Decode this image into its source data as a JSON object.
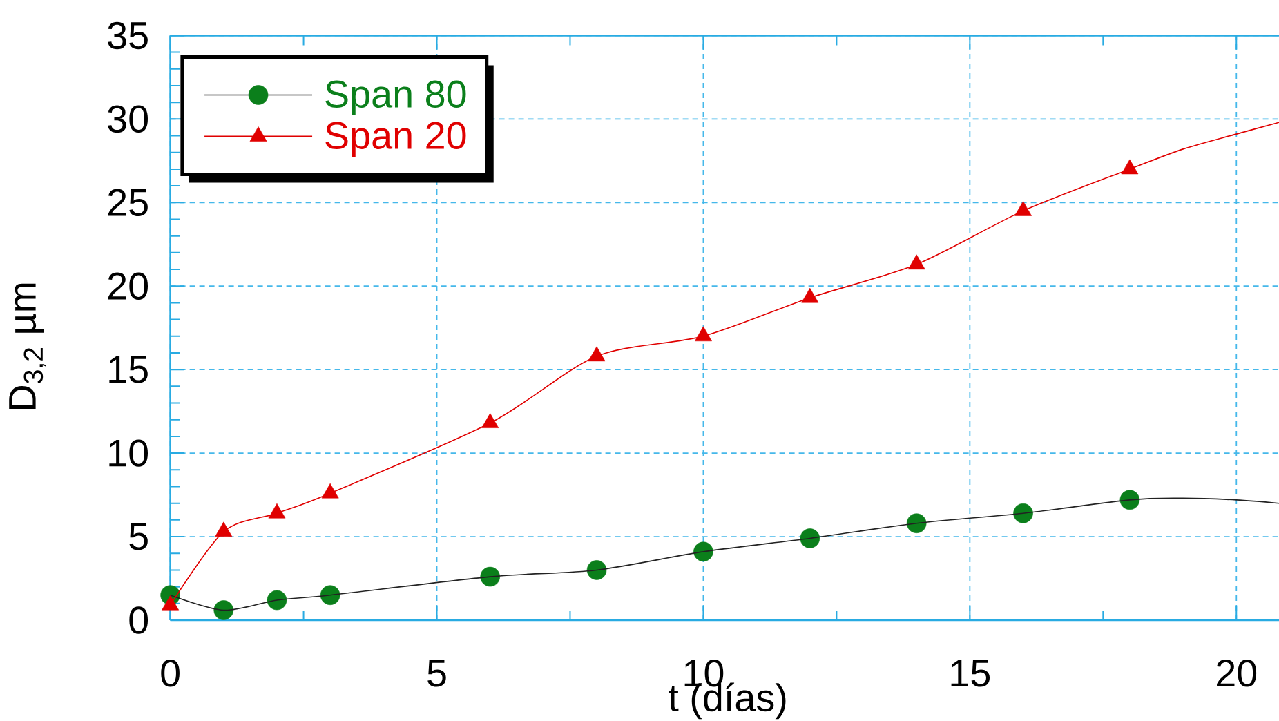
{
  "chart_data": {
    "type": "line",
    "xlabel": "t (días)",
    "ylabel": "D$_{3,2}$ µm",
    "xlim": [
      0,
      20.8
    ],
    "ylim": [
      0,
      35
    ],
    "xticks": [
      0,
      {
        "value": 2.5,
        "label": null
      },
      5,
      {
        "value": 7.5,
        "label": null
      },
      10,
      {
        "value": 12.5,
        "label": null
      },
      15,
      {
        "value": 17.5,
        "label": null
      },
      20
    ],
    "yticks": [
      0,
      {
        "value": 1,
        "label": null
      },
      {
        "value": 2,
        "label": null
      },
      {
        "value": 3,
        "label": null
      },
      {
        "value": 4,
        "label": null
      },
      5,
      {
        "value": 6,
        "label": null
      },
      {
        "value": 7,
        "label": null
      },
      {
        "value": 8,
        "label": null
      },
      {
        "value": 9,
        "label": null
      },
      10,
      {
        "value": 11,
        "label": null
      },
      {
        "value": 12,
        "label": null
      },
      {
        "value": 13,
        "label": null
      },
      {
        "value": 14,
        "label": null
      },
      15,
      {
        "value": 16,
        "label": null
      },
      {
        "value": 17,
        "label": null
      },
      {
        "value": 18,
        "label": null
      },
      {
        "value": 19,
        "label": null
      },
      20,
      {
        "value": 21,
        "label": null
      },
      {
        "value": 22,
        "label": null
      },
      {
        "value": 23,
        "label": null
      },
      {
        "value": 24,
        "label": null
      },
      25,
      {
        "value": 26,
        "label": null
      },
      {
        "value": 27,
        "label": null
      },
      {
        "value": 28,
        "label": null
      },
      {
        "value": 29,
        "label": null
      },
      30,
      {
        "value": 31,
        "label": null
      },
      {
        "value": 32,
        "label": null
      },
      {
        "value": 33,
        "label": null
      },
      {
        "value": 34,
        "label": null
      },
      35
    ],
    "grid": true,
    "legend": "top left",
    "series": [
      {
        "color": "#222222",
        "marker": "none",
        "x": [
          0,
          1,
          2,
          3,
          6,
          8,
          10,
          12,
          14,
          16,
          18,
          19,
          20,
          20.8
        ],
        "values": [
          1.5,
          0.6,
          1.2,
          1.5,
          2.6,
          3.0,
          4.1,
          4.9,
          5.8,
          6.4,
          7.2,
          7.3,
          7.2,
          7.0
        ]
      },
      {
        "name": "Span 80",
        "type": "scatter",
        "color": "#0b7f1b",
        "marker": "circle",
        "x": [
          0,
          1,
          2,
          3,
          6,
          8,
          10,
          12,
          14,
          16,
          18
        ],
        "values": [
          1.5,
          0.6,
          1.2,
          1.5,
          2.6,
          3.0,
          4.1,
          4.9,
          5.8,
          6.4,
          7.2
        ]
      },
      {
        "color": "#e00000",
        "marker": "none",
        "x": [
          0,
          1,
          2,
          3,
          6,
          8,
          10,
          12,
          14,
          16,
          18,
          19,
          20,
          20.8
        ],
        "values": [
          0.9,
          5.3,
          6.4,
          7.6,
          11.8,
          15.8,
          17.0,
          19.3,
          21.3,
          24.5,
          27.0,
          28.2,
          29.1,
          29.8
        ]
      },
      {
        "name": "Span 20",
        "type": "scatter",
        "color": "#e00000",
        "marker": "triangle",
        "x": [
          0,
          1,
          2,
          3,
          6,
          8,
          10,
          12,
          14,
          16,
          18
        ],
        "values": [
          0.9,
          5.3,
          6.4,
          7.6,
          11.8,
          15.8,
          17.0,
          19.3,
          21.3,
          24.5,
          27.0
        ]
      }
    ]
  }
}
